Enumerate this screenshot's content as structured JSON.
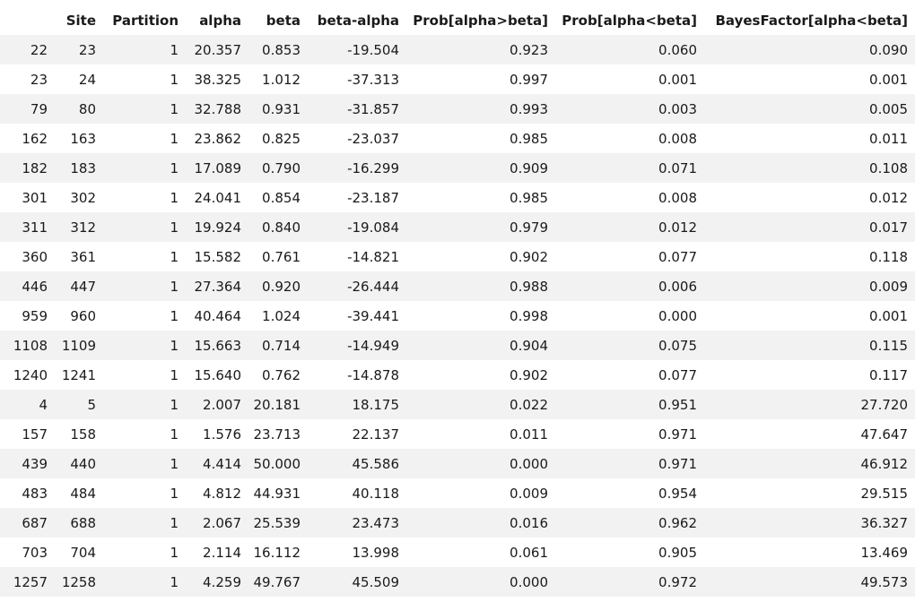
{
  "columns": [
    "",
    "Site",
    "Partition",
    "alpha",
    "beta",
    "beta-alpha",
    "Prob[alpha>beta]",
    "Prob[alpha<beta]",
    "BayesFactor[alpha<beta]"
  ],
  "rows": [
    [
      "22",
      "23",
      "1",
      "20.357",
      "0.853",
      "-19.504",
      "0.923",
      "0.060",
      "0.090"
    ],
    [
      "23",
      "24",
      "1",
      "38.325",
      "1.012",
      "-37.313",
      "0.997",
      "0.001",
      "0.001"
    ],
    [
      "79",
      "80",
      "1",
      "32.788",
      "0.931",
      "-31.857",
      "0.993",
      "0.003",
      "0.005"
    ],
    [
      "162",
      "163",
      "1",
      "23.862",
      "0.825",
      "-23.037",
      "0.985",
      "0.008",
      "0.011"
    ],
    [
      "182",
      "183",
      "1",
      "17.089",
      "0.790",
      "-16.299",
      "0.909",
      "0.071",
      "0.108"
    ],
    [
      "301",
      "302",
      "1",
      "24.041",
      "0.854",
      "-23.187",
      "0.985",
      "0.008",
      "0.012"
    ],
    [
      "311",
      "312",
      "1",
      "19.924",
      "0.840",
      "-19.084",
      "0.979",
      "0.012",
      "0.017"
    ],
    [
      "360",
      "361",
      "1",
      "15.582",
      "0.761",
      "-14.821",
      "0.902",
      "0.077",
      "0.118"
    ],
    [
      "446",
      "447",
      "1",
      "27.364",
      "0.920",
      "-26.444",
      "0.988",
      "0.006",
      "0.009"
    ],
    [
      "959",
      "960",
      "1",
      "40.464",
      "1.024",
      "-39.441",
      "0.998",
      "0.000",
      "0.001"
    ],
    [
      "1108",
      "1109",
      "1",
      "15.663",
      "0.714",
      "-14.949",
      "0.904",
      "0.075",
      "0.115"
    ],
    [
      "1240",
      "1241",
      "1",
      "15.640",
      "0.762",
      "-14.878",
      "0.902",
      "0.077",
      "0.117"
    ],
    [
      "4",
      "5",
      "1",
      "2.007",
      "20.181",
      "18.175",
      "0.022",
      "0.951",
      "27.720"
    ],
    [
      "157",
      "158",
      "1",
      "1.576",
      "23.713",
      "22.137",
      "0.011",
      "0.971",
      "47.647"
    ],
    [
      "439",
      "440",
      "1",
      "4.414",
      "50.000",
      "45.586",
      "0.000",
      "0.971",
      "46.912"
    ],
    [
      "483",
      "484",
      "1",
      "4.812",
      "44.931",
      "40.118",
      "0.009",
      "0.954",
      "29.515"
    ],
    [
      "687",
      "688",
      "1",
      "2.067",
      "25.539",
      "23.473",
      "0.016",
      "0.962",
      "36.327"
    ],
    [
      "703",
      "704",
      "1",
      "2.114",
      "16.112",
      "13.998",
      "0.061",
      "0.905",
      "13.469"
    ],
    [
      "1257",
      "1258",
      "1",
      "4.259",
      "49.767",
      "45.509",
      "0.000",
      "0.972",
      "49.573"
    ]
  ]
}
